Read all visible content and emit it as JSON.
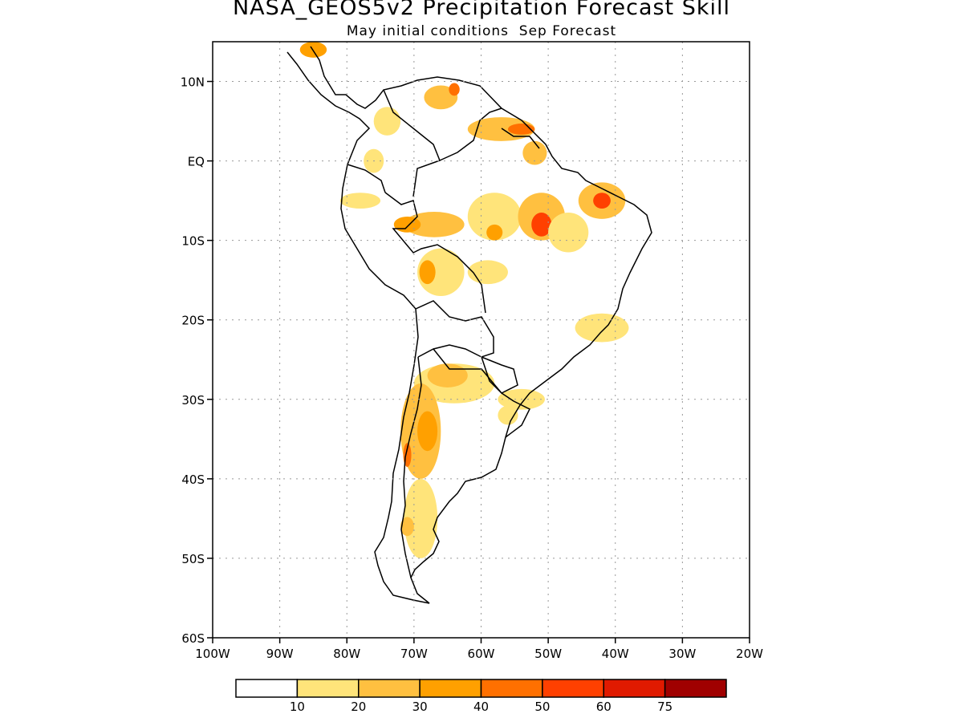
{
  "title": "NASA_GEOS5v2 Precipitation Forecast Skill",
  "subtitle": "May initial conditions  Sep Forecast",
  "map": {
    "lon_range": [
      -100,
      -20
    ],
    "lat_range": [
      -60,
      15
    ],
    "lat_ticks": [
      {
        "value": 10,
        "label": "10N"
      },
      {
        "value": 0,
        "label": "EQ"
      },
      {
        "value": -10,
        "label": "10S"
      },
      {
        "value": -20,
        "label": "20S"
      },
      {
        "value": -30,
        "label": "30S"
      },
      {
        "value": -40,
        "label": "40S"
      },
      {
        "value": -50,
        "label": "50S"
      },
      {
        "value": -60,
        "label": "60S"
      }
    ],
    "lon_ticks": [
      {
        "value": -100,
        "label": "100W"
      },
      {
        "value": -90,
        "label": "90W"
      },
      {
        "value": -80,
        "label": "80W"
      },
      {
        "value": -70,
        "label": "70W"
      },
      {
        "value": -60,
        "label": "60W"
      },
      {
        "value": -50,
        "label": "50W"
      },
      {
        "value": -40,
        "label": "40W"
      },
      {
        "value": -30,
        "label": "30W"
      },
      {
        "value": -20,
        "label": "20W"
      }
    ],
    "gridlines": true
  },
  "colorbar": {
    "colors": [
      "#ffffff",
      "#ffe47a",
      "#ffc040",
      "#ffa000",
      "#ff7000",
      "#ff4000",
      "#e01a00",
      "#a00000"
    ],
    "labels": [
      "10",
      "20",
      "30",
      "40",
      "50",
      "60",
      "75"
    ]
  },
  "skill_areas": [
    {
      "lon": -66,
      "lat": 27,
      "level": 1,
      "r": [
        5.0,
        1.8
      ]
    },
    {
      "lon": -66,
      "lat": 8,
      "level": 2,
      "r": [
        2.5,
        1.5
      ]
    },
    {
      "lon": -64,
      "lat": 9,
      "level": 4,
      "r": [
        0.8,
        0.8
      ]
    },
    {
      "lon": -57,
      "lat": 4,
      "level": 2,
      "r": [
        5.0,
        1.5
      ]
    },
    {
      "lon": -54,
      "lat": 4,
      "level": 4,
      "r": [
        2.0,
        0.7
      ]
    },
    {
      "lon": -52,
      "lat": 1,
      "level": 2,
      "r": [
        1.8,
        1.5
      ]
    },
    {
      "lon": -74,
      "lat": 5,
      "level": 1,
      "r": [
        2.0,
        1.8
      ]
    },
    {
      "lon": -76,
      "lat": 0,
      "level": 1,
      "r": [
        1.5,
        1.5
      ]
    },
    {
      "lon": -78,
      "lat": -5,
      "level": 1,
      "r": [
        3.0,
        1.0
      ]
    },
    {
      "lon": -67,
      "lat": -8,
      "level": 2,
      "r": [
        4.5,
        1.6
      ]
    },
    {
      "lon": -71,
      "lat": -8,
      "level": 3,
      "r": [
        2.0,
        1.0
      ]
    },
    {
      "lon": -58,
      "lat": -7,
      "level": 1,
      "r": [
        4.0,
        3.0
      ]
    },
    {
      "lon": -58,
      "lat": -9,
      "level": 3,
      "r": [
        1.2,
        1.0
      ]
    },
    {
      "lon": -51,
      "lat": -7,
      "level": 2,
      "r": [
        3.5,
        3.0
      ]
    },
    {
      "lon": -51,
      "lat": -8,
      "level": 5,
      "r": [
        1.5,
        1.5
      ]
    },
    {
      "lon": -42,
      "lat": -5,
      "level": 2,
      "r": [
        3.5,
        2.3
      ]
    },
    {
      "lon": -42,
      "lat": -5,
      "level": 5,
      "r": [
        1.3,
        1.0
      ]
    },
    {
      "lon": -47,
      "lat": -9,
      "level": 1,
      "r": [
        3.0,
        2.5
      ]
    },
    {
      "lon": -66,
      "lat": -14,
      "level": 1,
      "r": [
        3.5,
        3.0
      ]
    },
    {
      "lon": -68,
      "lat": -14,
      "level": 3,
      "r": [
        1.2,
        1.5
      ]
    },
    {
      "lon": -59,
      "lat": -14,
      "level": 1,
      "r": [
        3.0,
        1.5
      ]
    },
    {
      "lon": -42,
      "lat": -21,
      "level": 1,
      "r": [
        4.0,
        1.8
      ]
    },
    {
      "lon": -64,
      "lat": -28,
      "level": 1,
      "r": [
        6.0,
        2.5
      ]
    },
    {
      "lon": -65,
      "lat": -27,
      "level": 2,
      "r": [
        3.0,
        1.5
      ]
    },
    {
      "lon": -69,
      "lat": -34,
      "level": 2,
      "r": [
        3.0,
        6.0
      ]
    },
    {
      "lon": -68,
      "lat": -34,
      "level": 3,
      "r": [
        1.5,
        2.5
      ]
    },
    {
      "lon": -71,
      "lat": -37,
      "level": 4,
      "r": [
        0.6,
        1.5
      ]
    },
    {
      "lon": -54,
      "lat": -30,
      "level": 1,
      "r": [
        3.5,
        1.3
      ]
    },
    {
      "lon": -56,
      "lat": -32,
      "level": 1,
      "r": [
        1.5,
        1.2
      ]
    },
    {
      "lon": -69,
      "lat": -45,
      "level": 1,
      "r": [
        2.5,
        5.0
      ]
    },
    {
      "lon": -71,
      "lat": -46,
      "level": 2,
      "r": [
        1.0,
        1.2
      ]
    },
    {
      "lon": -85,
      "lat": 14,
      "level": 3,
      "r": [
        2.0,
        1.0
      ]
    }
  ]
}
